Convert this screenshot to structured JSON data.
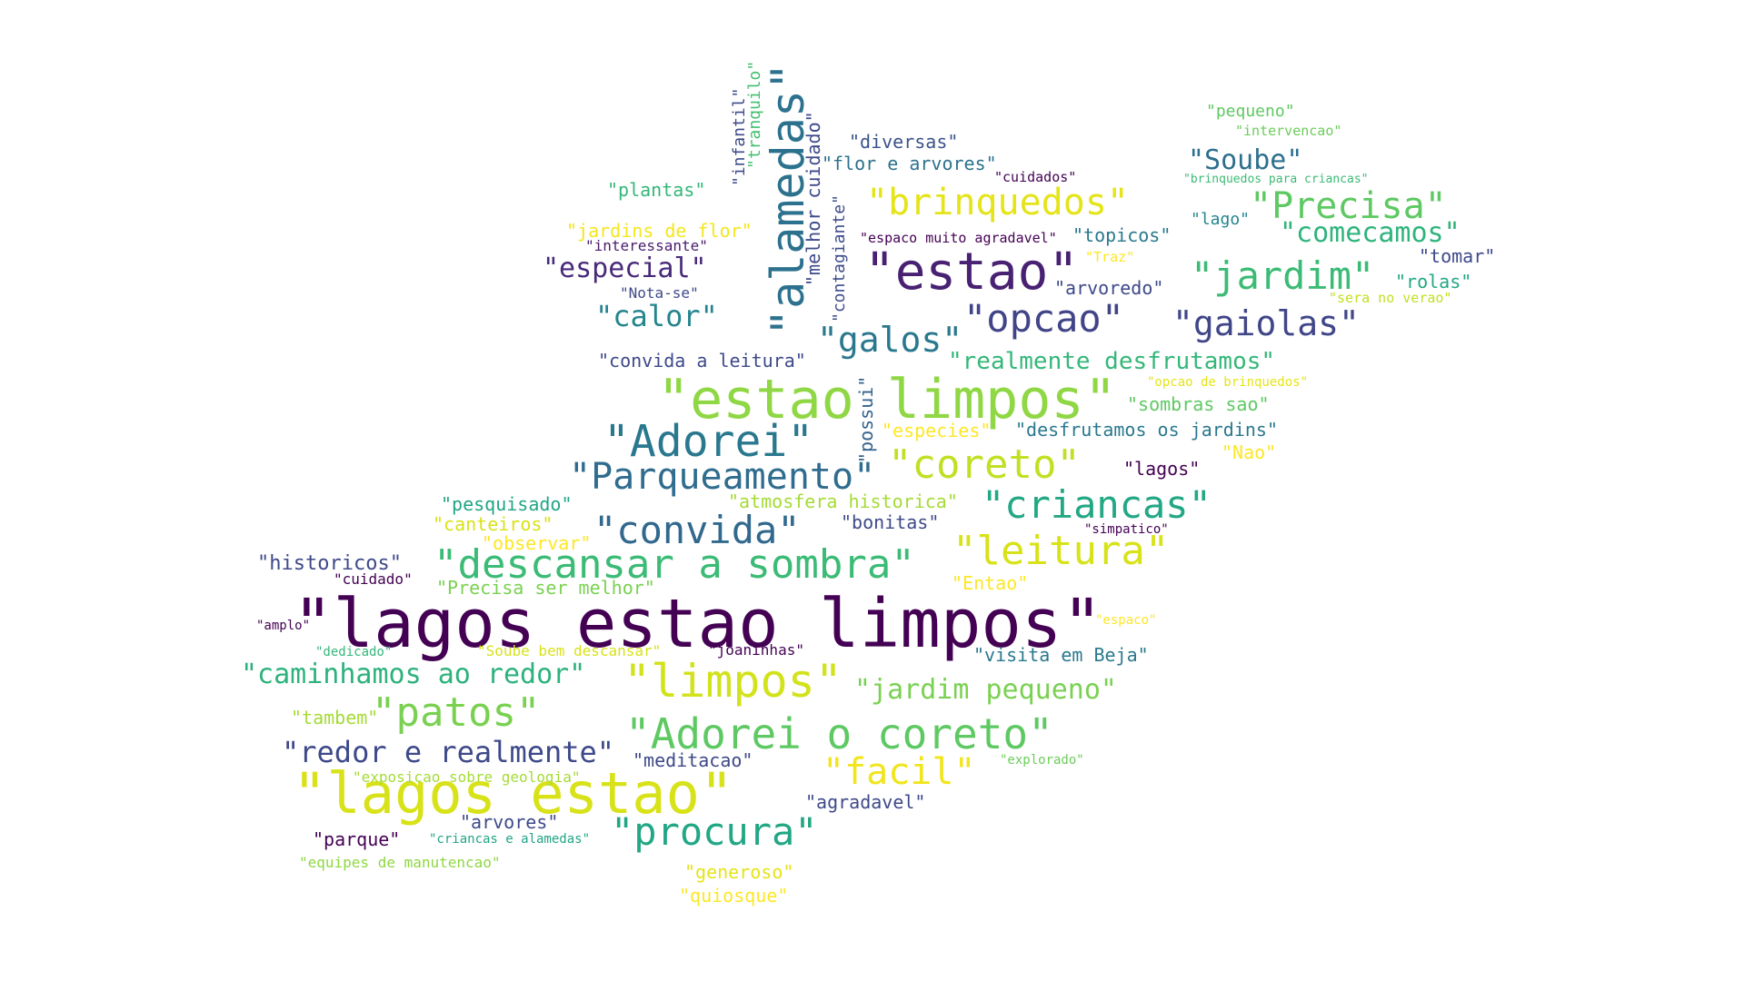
{
  "palette": {
    "dark_purple": "#440154",
    "indigo": "#3b528b",
    "slate": "#31688e",
    "teal": "#21908d",
    "green": "#35b779",
    "lime": "#8fd744",
    "yellow": "#e0e31e",
    "pale_yellow": "#f4e61e"
  },
  "words": [
    {
      "text": "\"lagos estao limpos\"",
      "color": "#440154"
    },
    {
      "text": "\"lagos estao\"",
      "color": "#d8e219"
    },
    {
      "text": "\"estao limpos\"",
      "color": "#8fd744"
    },
    {
      "text": "\"estao\"",
      "color": "#482173"
    },
    {
      "text": "\"alamedas\"",
      "color": "#2c728e"
    },
    {
      "text": "\"Adorei\"",
      "color": "#2a788e"
    },
    {
      "text": "\"Adorei o coreto\"",
      "color": "#5ec962"
    },
    {
      "text": "\"limpos\"",
      "color": "#d2e21b"
    },
    {
      "text": "\"descansar a sombra\"",
      "color": "#3bbb75"
    },
    {
      "text": "\"leitura\"",
      "color": "#d8e219"
    },
    {
      "text": "\"coreto\"",
      "color": "#c2df23"
    },
    {
      "text": "\"Parqueamento\"",
      "color": "#2f6c8e"
    },
    {
      "text": "\"convida\"",
      "color": "#31688e"
    },
    {
      "text": "\"criancas\"",
      "color": "#22a884"
    },
    {
      "text": "\"procura\"",
      "color": "#22a785"
    },
    {
      "text": "\"patos\"",
      "color": "#7ad151"
    },
    {
      "text": "\"facil\"",
      "color": "#f1e51d"
    },
    {
      "text": "\"brinquedos\"",
      "color": "#e5e419"
    },
    {
      "text": "\"Precisa\"",
      "color": "#5ec962"
    },
    {
      "text": "\"jardim\"",
      "color": "#3bbb75"
    },
    {
      "text": "\"gaiolas\"",
      "color": "#404688"
    },
    {
      "text": "\"opcao\"",
      "color": "#414487"
    },
    {
      "text": "\"galos\"",
      "color": "#2a788e"
    },
    {
      "text": "\"especial\"",
      "color": "#472a7a"
    },
    {
      "text": "\"calor\"",
      "color": "#25858e"
    },
    {
      "text": "\"Soube\"",
      "color": "#2e6f8e"
    },
    {
      "text": "\"comecamos\"",
      "color": "#2fb47c"
    },
    {
      "text": "\"caminhamos ao redor\"",
      "color": "#2db27d"
    },
    {
      "text": "\"jardim pequeno\"",
      "color": "#7ad151"
    },
    {
      "text": "\"redor e realmente\"",
      "color": "#3e4989"
    },
    {
      "text": "\"realmente desfrutamos\"",
      "color": "#35b779"
    },
    {
      "text": "\"infantil\"",
      "color": "#3e4a89"
    },
    {
      "text": "\"tranquilo\"",
      "color": "#44bf70"
    },
    {
      "text": "\"melhor cuidado\"",
      "color": "#3e4989"
    },
    {
      "text": "\"contagiante\"",
      "color": "#3e4c8a"
    },
    {
      "text": "\"possui\"",
      "color": "#33638d"
    },
    {
      "text": "\"diversas\"",
      "color": "#3b528b"
    },
    {
      "text": "\"flor e arvores\"",
      "color": "#2d718e"
    },
    {
      "text": "\"plantas\"",
      "color": "#35b779"
    },
    {
      "text": "\"jardins de flor\"",
      "color": "#f4e61e"
    },
    {
      "text": "\"interessante\"",
      "color": "#481c6e"
    },
    {
      "text": "\"Nota-se\"",
      "color": "#3e4989"
    },
    {
      "text": "\"convida a leitura\"",
      "color": "#3e4989"
    },
    {
      "text": "\"espaco muito agradavel\"",
      "color": "#440154"
    },
    {
      "text": "\"topicos\"",
      "color": "#2a788e"
    },
    {
      "text": "\"Traz\"",
      "color": "#fde725"
    },
    {
      "text": "\"arvoredo\"",
      "color": "#3e4989"
    },
    {
      "text": "\"pequeno\"",
      "color": "#5ec962"
    },
    {
      "text": "\"intervencao\"",
      "color": "#6ccd5a"
    },
    {
      "text": "\"cuidados\"",
      "color": "#440154"
    },
    {
      "text": "\"brinquedos para criancas\"",
      "color": "#3bbb75"
    },
    {
      "text": "\"lago\"",
      "color": "#25858e"
    },
    {
      "text": "\"tomar\"",
      "color": "#3e4989"
    },
    {
      "text": "\"rolas\"",
      "color": "#22a884"
    },
    {
      "text": "\"sera no verao\"",
      "color": "#c2df23"
    },
    {
      "text": "\"opcao de brinquedos\"",
      "color": "#e5e419"
    },
    {
      "text": "\"sombras sao\"",
      "color": "#5ec962"
    },
    {
      "text": "\"especies\"",
      "color": "#fde725"
    },
    {
      "text": "\"desfrutamos os jardins\"",
      "color": "#2a788e"
    },
    {
      "text": "\"Nao\"",
      "color": "#fde725"
    },
    {
      "text": "\"lagos\"",
      "color": "#440154"
    },
    {
      "text": "\"atmosfera historica\"",
      "color": "#a5db36"
    },
    {
      "text": "\"pesquisado\"",
      "color": "#21a585"
    },
    {
      "text": "\"canteiros\"",
      "color": "#d8e219"
    },
    {
      "text": "\"bonitas\"",
      "color": "#3e4989"
    },
    {
      "text": "\"observar\"",
      "color": "#fde725"
    },
    {
      "text": "\"simpatico\"",
      "color": "#440154"
    },
    {
      "text": "\"historicos\"",
      "color": "#3e4989"
    },
    {
      "text": "\"cuidado\"",
      "color": "#440154"
    },
    {
      "text": "\"Precisa ser melhor\"",
      "color": "#7ad151"
    },
    {
      "text": "\"Entao\"",
      "color": "#fde725"
    },
    {
      "text": "\"espaco\"",
      "color": "#fde725"
    },
    {
      "text": "\"amplo\"",
      "color": "#440154"
    },
    {
      "text": "\"dedicado\"",
      "color": "#35b779"
    },
    {
      "text": "\"Soube bem descansar\"",
      "color": "#d8e219"
    },
    {
      "text": "\"joaninhas\"",
      "color": "#440154"
    },
    {
      "text": "\"visita em Beja\"",
      "color": "#2a788e"
    },
    {
      "text": "\"tambem\"",
      "color": "#a5db36"
    },
    {
      "text": "\"meditacao\"",
      "color": "#3e4989"
    },
    {
      "text": "\"exposicao sobre geologia\"",
      "color": "#a5db36"
    },
    {
      "text": "\"explorado\"",
      "color": "#6ccd5a"
    },
    {
      "text": "\"agradavel\"",
      "color": "#3e4989"
    },
    {
      "text": "\"arvores\"",
      "color": "#3e4989"
    },
    {
      "text": "\"parque\"",
      "color": "#440154"
    },
    {
      "text": "\"criancas e alamedas\"",
      "color": "#21a585"
    },
    {
      "text": "\"equipes de manutencao\"",
      "color": "#8fd744"
    },
    {
      "text": "\"generoso\"",
      "color": "#e5e419"
    },
    {
      "text": "\"quiosque\"",
      "color": "#fde725"
    }
  ]
}
